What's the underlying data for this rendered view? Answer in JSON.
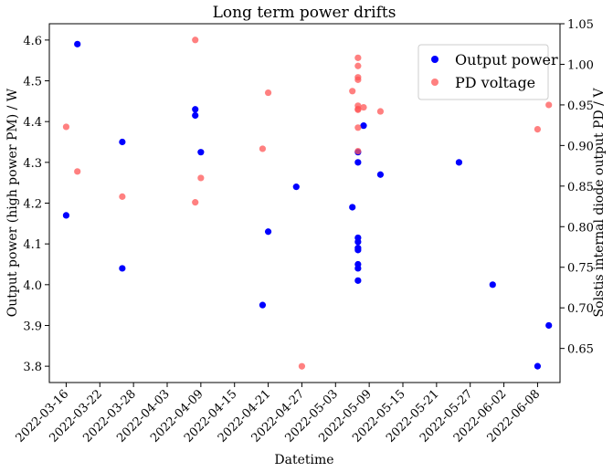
{
  "chart_data": {
    "type": "scatter",
    "title": "Long term power drifts",
    "xlabel": "Datetime",
    "ylabel_left": "Output power (high power PM) / W",
    "ylabel_right": "Solstis internal diode output PD / V",
    "xlim": [
      "2022-03-13",
      "2022-06-12"
    ],
    "ylim_left": [
      3.76,
      4.64
    ],
    "ylim_right": [
      0.608,
      1.05
    ],
    "x_ticks": [
      "2022-03-16",
      "2022-03-22",
      "2022-03-28",
      "2022-04-03",
      "2022-04-09",
      "2022-04-15",
      "2022-04-21",
      "2022-04-27",
      "2022-05-03",
      "2022-05-09",
      "2022-05-15",
      "2022-05-21",
      "2022-05-27",
      "2022-06-02",
      "2022-06-08"
    ],
    "y_ticks_left": [
      "3.8",
      "3.9",
      "4.0",
      "4.1",
      "4.2",
      "4.3",
      "4.4",
      "4.5",
      "4.6"
    ],
    "y_ticks_right": [
      "0.65",
      "0.70",
      "0.75",
      "0.80",
      "0.85",
      "0.90",
      "0.95",
      "1.00",
      "1.05"
    ],
    "legend_position": "top-right",
    "grid": false,
    "series": [
      {
        "name": "Output power",
        "axis": "left",
        "color": "#0000ff",
        "points": [
          {
            "x": "2022-03-16",
            "y": 4.17
          },
          {
            "x": "2022-03-18",
            "y": 4.59
          },
          {
            "x": "2022-03-26",
            "y": 4.35
          },
          {
            "x": "2022-03-26",
            "y": 4.04
          },
          {
            "x": "2022-04-08",
            "y": 4.43
          },
          {
            "x": "2022-04-08",
            "y": 4.415
          },
          {
            "x": "2022-04-09",
            "y": 4.325
          },
          {
            "x": "2022-04-20",
            "y": 3.95
          },
          {
            "x": "2022-04-21",
            "y": 4.13
          },
          {
            "x": "2022-04-26",
            "y": 4.24
          },
          {
            "x": "2022-05-06",
            "y": 4.19
          },
          {
            "x": "2022-05-07",
            "y": 4.325
          },
          {
            "x": "2022-05-07",
            "y": 4.3
          },
          {
            "x": "2022-05-07",
            "y": 4.115
          },
          {
            "x": "2022-05-07",
            "y": 4.105
          },
          {
            "x": "2022-05-07",
            "y": 4.09
          },
          {
            "x": "2022-05-07",
            "y": 4.085
          },
          {
            "x": "2022-05-07",
            "y": 4.05
          },
          {
            "x": "2022-05-07",
            "y": 4.04
          },
          {
            "x": "2022-05-07",
            "y": 4.01
          },
          {
            "x": "2022-05-08",
            "y": 4.39
          },
          {
            "x": "2022-05-11",
            "y": 4.27
          },
          {
            "x": "2022-05-25",
            "y": 4.3
          },
          {
            "x": "2022-05-31",
            "y": 4.0
          },
          {
            "x": "2022-06-08",
            "y": 3.8
          },
          {
            "x": "2022-06-10",
            "y": 3.9
          }
        ]
      },
      {
        "name": "PD voltage",
        "axis": "right",
        "color": "#ff5555",
        "points": [
          {
            "x": "2022-03-16",
            "y": 0.923
          },
          {
            "x": "2022-03-18",
            "y": 0.868
          },
          {
            "x": "2022-03-26",
            "y": 0.837
          },
          {
            "x": "2022-04-08",
            "y": 1.03
          },
          {
            "x": "2022-04-08",
            "y": 0.83
          },
          {
            "x": "2022-04-09",
            "y": 0.86
          },
          {
            "x": "2022-04-20",
            "y": 0.896
          },
          {
            "x": "2022-04-21",
            "y": 0.965
          },
          {
            "x": "2022-04-27",
            "y": 0.628
          },
          {
            "x": "2022-05-06",
            "y": 0.967
          },
          {
            "x": "2022-05-07",
            "y": 1.008
          },
          {
            "x": "2022-05-07",
            "y": 0.998
          },
          {
            "x": "2022-05-07",
            "y": 0.984
          },
          {
            "x": "2022-05-07",
            "y": 0.981
          },
          {
            "x": "2022-05-07",
            "y": 0.949
          },
          {
            "x": "2022-05-07",
            "y": 0.945
          },
          {
            "x": "2022-05-07",
            "y": 0.944
          },
          {
            "x": "2022-05-07",
            "y": 0.922
          },
          {
            "x": "2022-05-07",
            "y": 0.893
          },
          {
            "x": "2022-05-08",
            "y": 0.947
          },
          {
            "x": "2022-05-11",
            "y": 0.942
          },
          {
            "x": "2022-06-08",
            "y": 0.92
          },
          {
            "x": "2022-06-10",
            "y": 0.95
          }
        ]
      }
    ]
  }
}
